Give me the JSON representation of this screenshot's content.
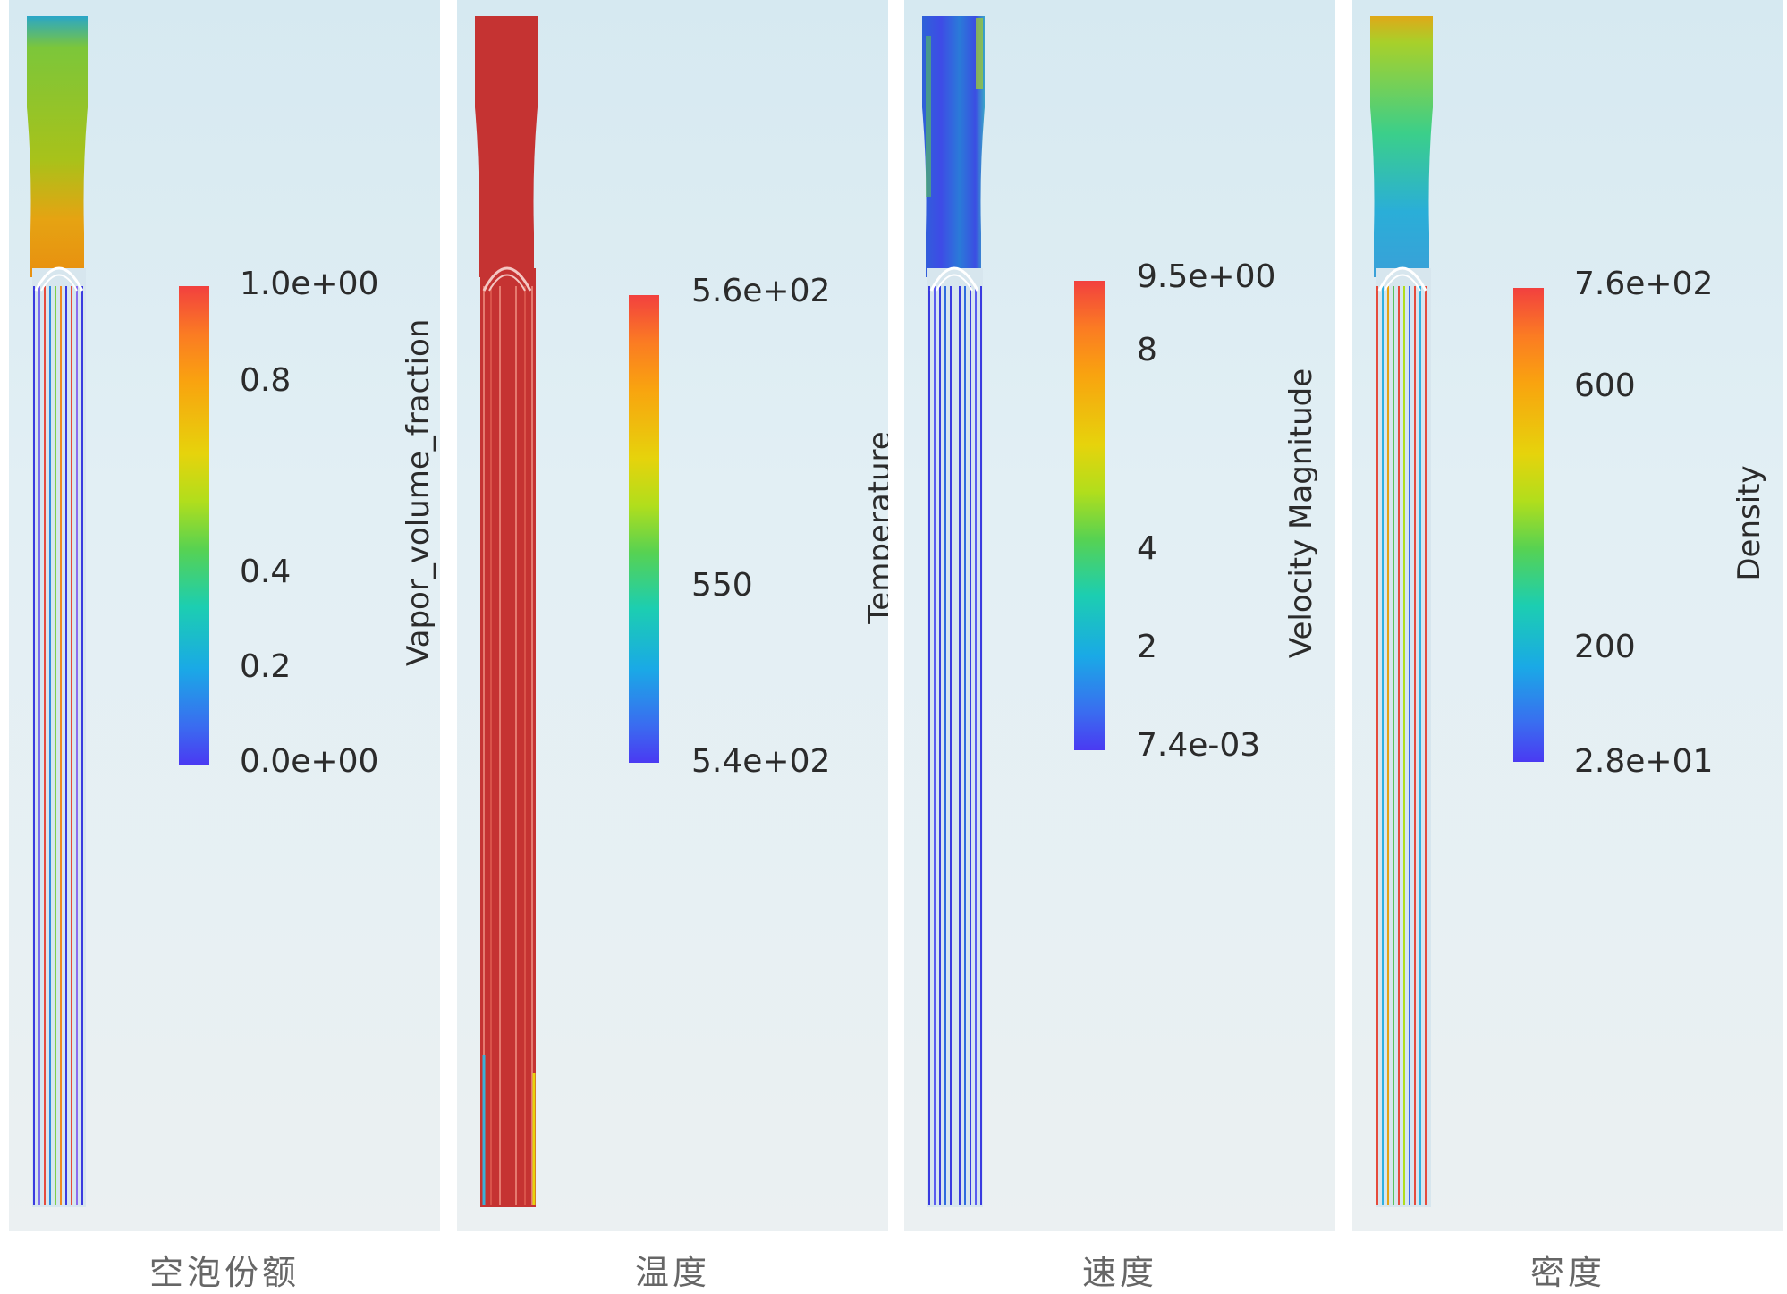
{
  "colors": {
    "background": "#ffffff",
    "panel_top": "#d6e9f1",
    "panel_bottom": "#ebf0f2",
    "temperature_fill": "#c53332"
  },
  "panels": [
    {
      "caption": "空泡份额",
      "variable": "Vapor_volume_fraction",
      "ticks": [
        "1.0e+00",
        "0.8",
        "0.4",
        "0.2",
        "0.0e+00"
      ]
    },
    {
      "caption": "温度",
      "variable": "Temperature",
      "ticks": [
        "5.6e+02",
        "550",
        "5.4e+02"
      ]
    },
    {
      "caption": "速度",
      "variable": "Velocity Magnitude",
      "ticks": [
        "9.5e+00",
        "8",
        "4",
        "2",
        "7.4e-03"
      ]
    },
    {
      "caption": "密度",
      "variable": "Density",
      "ticks": [
        "7.6e+02",
        "600",
        "200",
        "2.8e+01"
      ]
    }
  ]
}
